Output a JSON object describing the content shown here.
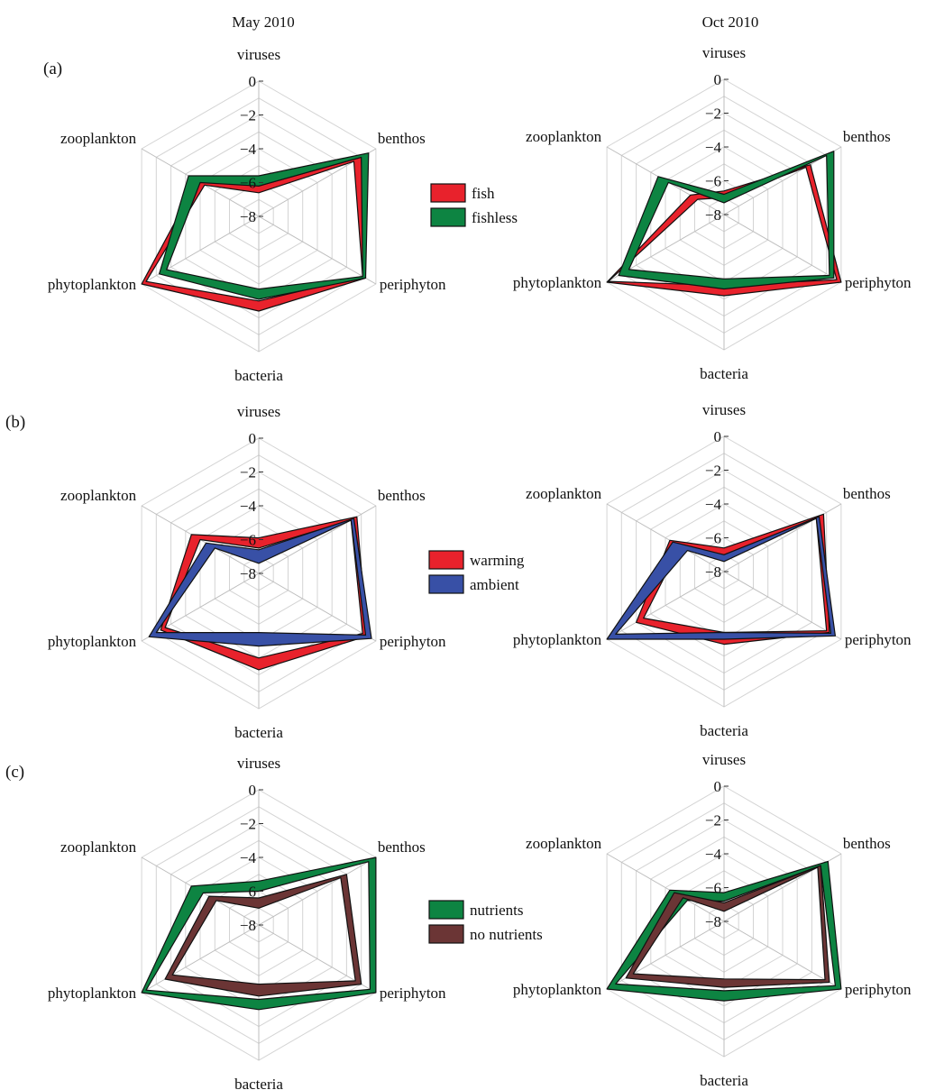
{
  "column_titles": [
    "May 2010",
    "Oct 2010"
  ],
  "panel_labels": [
    "(a)",
    "(b)",
    "(c)"
  ],
  "chart_data": [
    {
      "type": "radar",
      "panel": "(a)",
      "column": "May 2010",
      "axes": [
        "viruses",
        "benthos",
        "periphyton",
        "bacteria",
        "phytoplankton",
        "zooplankton"
      ],
      "scale": {
        "min": -8,
        "max": 0,
        "ticks": [
          0,
          -2,
          -4,
          -6,
          -8
        ]
      },
      "series": [
        {
          "name": "fish",
          "color": "#e8222c",
          "inner": [
            -6.6,
            -1.5,
            -0.9,
            -3.0,
            -0.3,
            -4.3
          ],
          "outer": [
            -6.2,
            -1.0,
            -0.7,
            -2.4,
            0.0,
            -3.8
          ]
        },
        {
          "name": "fishless",
          "color": "#0d8442",
          "inner": [
            -6.2,
            -1.0,
            -0.9,
            -3.7,
            -1.7,
            -4.0
          ],
          "outer": [
            -5.6,
            -0.5,
            -0.7,
            -3.1,
            -1.2,
            -3.2
          ]
        }
      ]
    },
    {
      "type": "radar",
      "panel": "(a)",
      "column": "Oct 2010",
      "axes": [
        "viruses",
        "benthos",
        "periphyton",
        "bacteria",
        "phytoplankton",
        "zooplankton"
      ],
      "scale": {
        "min": -8,
        "max": 0,
        "ticks": [
          0,
          -2,
          -4,
          -6,
          -8
        ]
      },
      "series": [
        {
          "name": "fish",
          "color": "#e8222c",
          "inner": [
            -7.0,
            -2.4,
            -0.3,
            -3.8,
            -0.1,
            -6.2
          ],
          "outer": [
            -6.6,
            -2.1,
            0.0,
            -3.2,
            0.0,
            -5.7
          ]
        },
        {
          "name": "fishless",
          "color": "#0d8442",
          "inner": [
            -7.3,
            -1.0,
            -0.8,
            -4.2,
            -1.5,
            -4.2
          ],
          "outer": [
            -6.8,
            -0.5,
            -0.5,
            -3.6,
            -0.8,
            -3.5
          ]
        }
      ]
    },
    {
      "type": "radar",
      "panel": "(b)",
      "column": "May 2010",
      "axes": [
        "viruses",
        "benthos",
        "periphyton",
        "bacteria",
        "phytoplankton",
        "zooplankton"
      ],
      "scale": {
        "min": -8,
        "max": 0,
        "ticks": [
          0,
          -2,
          -4,
          -6,
          -8
        ]
      },
      "series": [
        {
          "name": "warming",
          "color": "#e8222c",
          "inner": [
            -6.5,
            -1.7,
            -0.9,
            -3.0,
            -1.6,
            -4.0
          ],
          "outer": [
            -5.9,
            -1.3,
            -0.6,
            -2.3,
            -1.3,
            -3.4
          ]
        },
        {
          "name": "ambient",
          "color": "#3850a6",
          "inner": [
            -7.4,
            -1.7,
            -0.7,
            -4.5,
            -1.0,
            -5.0
          ],
          "outer": [
            -6.6,
            -1.5,
            -0.3,
            -3.7,
            -0.5,
            -4.4
          ]
        }
      ]
    },
    {
      "type": "radar",
      "panel": "(b)",
      "column": "Oct 2010",
      "axes": [
        "viruses",
        "benthos",
        "periphyton",
        "bacteria",
        "phytoplankton",
        "zooplankton"
      ],
      "scale": {
        "min": -8,
        "max": 0,
        "ticks": [
          0,
          -2,
          -4,
          -6,
          -8
        ]
      },
      "series": [
        {
          "name": "warming",
          "color": "#e8222c",
          "inner": [
            -7.0,
            -1.7,
            -1.0,
            -4.4,
            -2.5,
            -5.0
          ],
          "outer": [
            -6.6,
            -1.2,
            -0.8,
            -3.7,
            -2.0,
            -4.3
          ]
        },
        {
          "name": "ambient",
          "color": "#3850a6",
          "inner": [
            -7.4,
            -1.7,
            -0.7,
            -4.4,
            -0.6,
            -5.5
          ],
          "outer": [
            -7.0,
            -1.5,
            -0.4,
            -4.0,
            0.0,
            -4.5
          ]
        }
      ]
    },
    {
      "type": "radar",
      "panel": "(c)",
      "column": "May 2010",
      "axes": [
        "viruses",
        "benthos",
        "periphyton",
        "bacteria",
        "phytoplankton",
        "zooplankton"
      ],
      "scale": {
        "min": -8,
        "max": 0,
        "ticks": [
          0,
          -2,
          -4,
          -6,
          -8
        ]
      },
      "series": [
        {
          "name": "nutrients",
          "color": "#0d8442",
          "inner": [
            -6.0,
            -0.5,
            -0.4,
            -3.6,
            -0.3,
            -4.2
          ],
          "outer": [
            -5.4,
            0.0,
            0.0,
            -3.0,
            0.0,
            -3.4
          ]
        },
        {
          "name": "no nutrients",
          "color": "#6b3535",
          "inner": [
            -7.0,
            -2.4,
            -1.4,
            -4.5,
            -2.1,
            -5.1
          ],
          "outer": [
            -6.4,
            -2.0,
            -1.0,
            -3.8,
            -1.6,
            -4.6
          ]
        }
      ]
    },
    {
      "type": "radar",
      "panel": "(c)",
      "column": "Oct 2010",
      "axes": [
        "viruses",
        "benthos",
        "periphyton",
        "bacteria",
        "phytoplankton",
        "zooplankton"
      ],
      "scale": {
        "min": -8,
        "max": 0,
        "ticks": [
          0,
          -2,
          -4,
          -6,
          -8
        ]
      },
      "series": [
        {
          "name": "nutrients",
          "color": "#0d8442",
          "inner": [
            -6.8,
            -1.4,
            -0.4,
            -3.9,
            -0.6,
            -5.5
          ],
          "outer": [
            -6.3,
            -0.9,
            0.0,
            -3.3,
            0.0,
            -4.3
          ]
        },
        {
          "name": "no nutrients",
          "color": "#6b3535",
          "inner": [
            -7.4,
            -1.6,
            -1.1,
            -4.6,
            -1.8,
            -5.2
          ],
          "outer": [
            -6.9,
            -1.4,
            -0.8,
            -4.1,
            -1.3,
            -4.6
          ]
        }
      ]
    }
  ]
}
